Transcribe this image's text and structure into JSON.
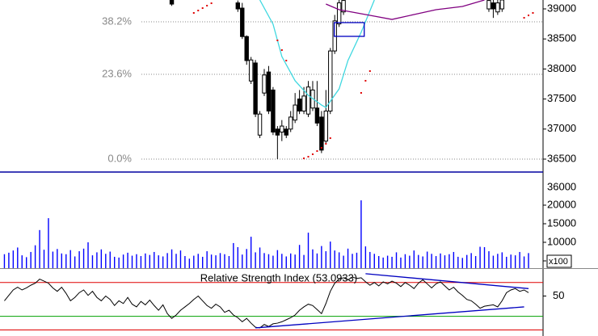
{
  "chart_data": [
    {
      "type": "candlestick",
      "xlim": [
        -1,
        122.3
      ],
      "ylim": [
        36285,
        39148
      ],
      "yticks": [
        36500,
        37000,
        37500,
        38000,
        38500,
        39000
      ],
      "up_color": "#ffffff",
      "down_color": "#000000",
      "candles": {
        "x": [
          38,
          53,
          54,
          55,
          56,
          57,
          58,
          59,
          60,
          61,
          62,
          63,
          64,
          65,
          66,
          67,
          68,
          69,
          70,
          71,
          72,
          73,
          74,
          75,
          76,
          77,
          110,
          111,
          112,
          113
        ],
        "open": [
          39148,
          39100,
          39013,
          38540,
          37800,
          38100,
          36900,
          37600,
          37950,
          37650,
          37000,
          36950,
          37000,
          37000,
          37150,
          37500,
          37300,
          37250,
          37350,
          37350,
          37200,
          36800,
          37300,
          38300,
          38750,
          38950,
          39000,
          39100,
          38950,
          39000
        ],
        "high": [
          39148,
          39140,
          39100,
          38560,
          38200,
          38150,
          37300,
          38000,
          38050,
          37700,
          37050,
          37150,
          37050,
          37300,
          37600,
          37650,
          37700,
          37800,
          37800,
          37800,
          37300,
          37650,
          38350,
          38900,
          39148,
          39148,
          39148,
          39148,
          39148,
          39148
        ],
        "low": [
          39050,
          38950,
          38500,
          38070,
          37750,
          37200,
          36850,
          37550,
          37250,
          36900,
          36500,
          36800,
          36850,
          36950,
          37100,
          37250,
          37250,
          37200,
          37300,
          37050,
          36600,
          36750,
          37250,
          38250,
          38700,
          38900,
          38950,
          38850,
          38900,
          38950
        ],
        "close": [
          39080,
          39000,
          38540,
          38140,
          38150,
          37250,
          37250,
          37900,
          37300,
          36950,
          36900,
          37050,
          36900,
          37200,
          37400,
          37300,
          37550,
          37700,
          37650,
          37100,
          36650,
          37300,
          38300,
          38800,
          39100,
          39140,
          39140,
          39000,
          39100,
          39148
        ]
      },
      "series": [
        {
          "color": "#40d8e0",
          "x": [
            58,
            61,
            63,
            66,
            69,
            72,
            73,
            76,
            78,
            81,
            84
          ],
          "values": [
            39148,
            38745,
            38207,
            37804,
            37562,
            37400,
            37360,
            37669,
            38140,
            38610,
            39148
          ]
        },
        {
          "color": "#800080",
          "x": [
            73,
            76,
            80,
            84,
            88,
            93,
            98,
            104,
            109
          ],
          "values": [
            39081,
            38987,
            38933,
            38879,
            38825,
            38906,
            38987,
            39040,
            39148
          ]
        }
      ],
      "sar": {
        "color": "#e00000",
        "x": [
          43,
          44,
          45,
          46,
          47,
          62,
          63,
          64,
          68,
          69,
          70,
          71,
          72,
          73,
          74,
          81,
          82,
          83,
          118,
          119,
          120
        ],
        "values": [
          38933,
          38973,
          39013,
          39054,
          39094,
          38476,
          38315,
          38140,
          36513,
          36540,
          36581,
          36634,
          36688,
          36755,
          36849,
          37602,
          37804,
          37965,
          38852,
          38892,
          38933
        ]
      },
      "fib_levels": [
        {
          "label": "38.2%",
          "value": 38785
        },
        {
          "label": "23.6%",
          "value": 37911
        },
        {
          "label": "0.0%",
          "value": 36500
        }
      ],
      "highlight": {
        "color": "#0000c0",
        "x": [
          74.9,
          81.7
        ],
        "y": [
          38543,
          38772
        ]
      }
    },
    {
      "type": "bar",
      "color": "#0000ff",
      "xlim": [
        -1,
        122.3
      ],
      "ylim": [
        3043,
        28700
      ],
      "yticks": [
        5000,
        10000,
        15000,
        20000
      ],
      "max_label": "36000",
      "unit_label": "x100",
      "values": [
        6800,
        7200,
        7800,
        8600,
        6500,
        6000,
        7400,
        9200,
        13300,
        8000,
        16500,
        7500,
        8200,
        7000,
        6800,
        7900,
        6200,
        7600,
        8300,
        10000,
        6500,
        7300,
        8100,
        6900,
        7500,
        6100,
        5900,
        6700,
        7200,
        6400,
        6800,
        6300,
        7000,
        6600,
        7400,
        6500,
        6200,
        7100,
        8100,
        6900,
        7800,
        6300,
        5600,
        6400,
        6900,
        6100,
        7600,
        6700,
        6500,
        7100,
        6800,
        6300,
        9800,
        8700,
        6700,
        8200,
        11500,
        7300,
        8600,
        7100,
        6800,
        6400,
        7900,
        6900,
        6200,
        7000,
        6700,
        9300,
        6600,
        12600,
        8100,
        7000,
        9000,
        7600,
        10200,
        7800,
        7300,
        6400,
        8300,
        6900,
        7200,
        21300,
        8900,
        7400,
        6900,
        6300,
        5900,
        6400,
        6100,
        7300,
        5900,
        6800,
        6400,
        7800,
        6600,
        6200,
        7500,
        6900,
        6300,
        7000,
        6500,
        6800,
        7400,
        6100,
        5800,
        6600,
        7100,
        6300,
        8800,
        8700,
        7600,
        6400,
        6900,
        7300,
        6100,
        6700,
        6500,
        7400,
        6200,
        7100
      ]
    },
    {
      "type": "line",
      "color": "#000000",
      "title": "Relative Strength Index (53.0933)",
      "xlim": [
        -1,
        122.3
      ],
      "ylim": [
        -9,
        90
      ],
      "yticks": [
        50
      ],
      "levels": [
        {
          "value": 70,
          "color": "#e00000"
        },
        {
          "value": 20,
          "color": "#00a000"
        },
        {
          "value": 0,
          "color": "#e00000"
        }
      ],
      "trendlines": [
        {
          "color": "#0000c0",
          "x": [
            82,
            119
          ],
          "values": [
            83,
            61
          ]
        },
        {
          "color": "#0000c0",
          "x": [
            57,
            118
          ],
          "values": [
            3,
            34
          ]
        }
      ],
      "values": [
        43,
        51,
        59,
        63,
        59,
        62,
        66,
        69,
        75,
        72,
        69,
        62,
        57,
        63,
        54,
        43,
        48,
        55,
        59,
        51,
        57,
        48,
        43,
        50,
        45,
        36,
        43,
        39,
        48,
        38,
        34,
        42,
        37,
        44,
        36,
        29,
        37,
        24,
        17,
        22,
        29,
        34,
        39,
        45,
        50,
        43,
        36,
        32,
        38,
        34,
        26,
        29,
        22,
        18,
        12,
        17,
        10,
        4,
        3,
        8,
        5,
        9,
        10,
        12,
        15,
        18,
        22,
        29,
        34,
        38,
        36,
        30,
        24,
        39,
        57,
        69,
        75,
        77,
        74,
        78,
        76,
        77,
        71,
        66,
        70,
        65,
        71,
        68,
        72,
        69,
        64,
        70,
        66,
        61,
        69,
        74,
        68,
        62,
        68,
        71,
        65,
        59,
        63,
        56,
        51,
        45,
        43,
        38,
        32,
        35,
        36,
        37,
        34,
        43,
        55,
        59,
        61,
        57,
        59,
        55
      ]
    }
  ]
}
